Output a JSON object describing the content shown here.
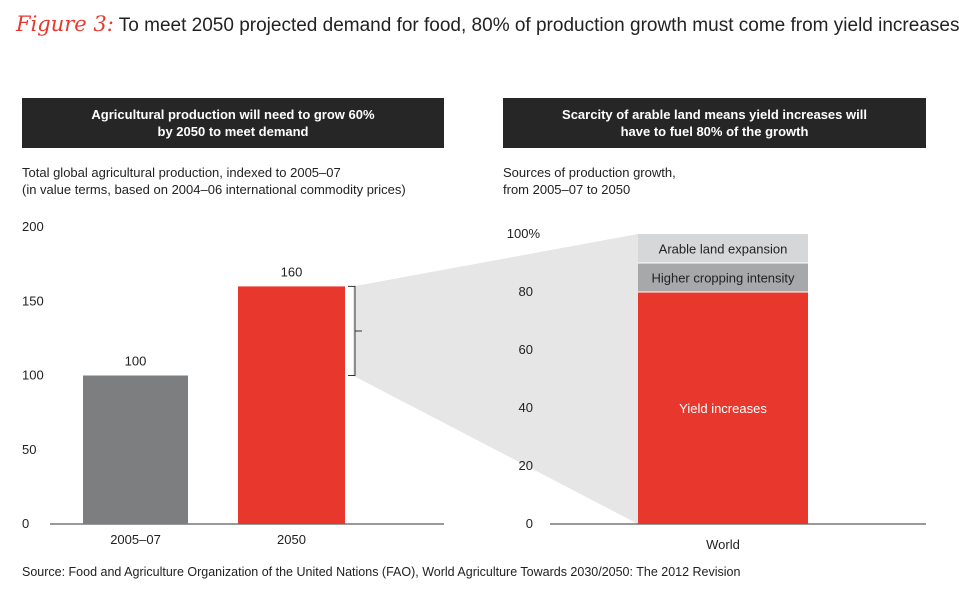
{
  "figure_label": "Figure 3:",
  "title": "To meet 2050 projected demand for food, 80% of production growth must come from yield increases",
  "left_panel": {
    "header_line1": "Agricultural production will need to grow 60%",
    "header_line2": "by 2050 to meet demand",
    "subtitle_line1": "Total global agricultural production, indexed to 2005–07",
    "subtitle_line2": "(in value terms, based on 2004–06 international commodity prices)"
  },
  "right_panel": {
    "header_line1": "Scarcity of arable land means yield increases will",
    "header_line2": "have to fuel 80% of the growth",
    "subtitle_line1": "Sources of production growth,",
    "subtitle_line2": "from 2005–07 to 2050"
  },
  "source": "Source: Food and Agriculture Organization of the United Nations (FAO), World Agriculture Towards 2030/2050: The 2012 Revision",
  "colors": {
    "accent_red": "#e8382d",
    "gray_bar": "#7d7e80",
    "mid_gray": "#a7a8aa",
    "light_gray": "#d6d7d9",
    "connector": "#e6e6e7",
    "header_bg": "#262626"
  },
  "chart_data": [
    {
      "type": "bar",
      "title": "Agricultural production will need to grow 60% by 2050 to meet demand",
      "categories": [
        "2005–07",
        "2050"
      ],
      "values": [
        100,
        160
      ],
      "data_labels": [
        "100",
        "160"
      ],
      "ylim": [
        0,
        200
      ],
      "yticks": [
        "0",
        "50",
        "100",
        "150",
        "200"
      ],
      "xlabel": "",
      "ylabel": "",
      "grid": false
    },
    {
      "type": "bar",
      "stacked": true,
      "title": "Scarcity of arable land means yield increases will have to fuel 80% of the growth",
      "categories": [
        "World"
      ],
      "series": [
        {
          "name": "Yield increases",
          "values": [
            80
          ]
        },
        {
          "name": "Higher cropping intensity",
          "values": [
            10
          ]
        },
        {
          "name": "Arable land expansion",
          "values": [
            10
          ]
        }
      ],
      "ylim": [
        0,
        100
      ],
      "yticks": [
        "0",
        "20",
        "40",
        "60",
        "80",
        "100%"
      ],
      "xlabel": "",
      "ylabel": "",
      "grid": false
    }
  ]
}
